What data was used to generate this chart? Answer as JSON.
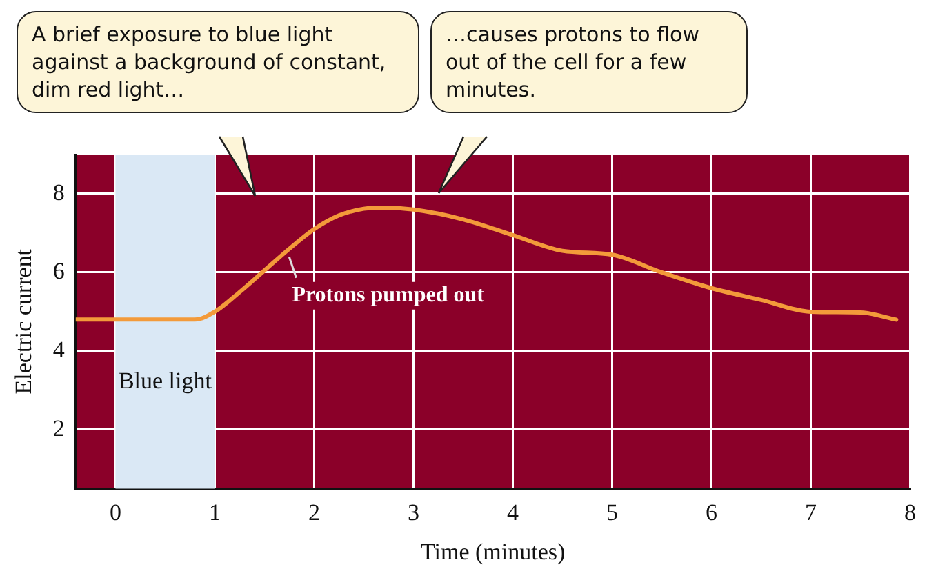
{
  "chart_data": {
    "type": "line",
    "xlabel": "Time (minutes)",
    "ylabel": "Electric current",
    "x": [
      -0.4,
      0,
      0.5,
      0.8,
      1.0,
      1.25,
      1.5,
      1.75,
      2.0,
      2.25,
      2.5,
      2.7,
      3.0,
      3.5,
      4.0,
      4.5,
      5.0,
      5.5,
      6.0,
      6.5,
      7.0,
      7.5,
      7.86
    ],
    "series": [
      {
        "color": "#f39a3a",
        "values": [
          4.8,
          4.8,
          4.8,
          4.8,
          5.0,
          5.5,
          6.05,
          6.6,
          7.1,
          7.45,
          7.62,
          7.65,
          7.6,
          7.35,
          6.95,
          6.55,
          6.45,
          6.0,
          5.6,
          5.3,
          5.0,
          4.98,
          4.8
        ]
      }
    ],
    "xlim": [
      -0.4,
      8
    ],
    "xticks": [
      0,
      1,
      2,
      3,
      4,
      5,
      6,
      7,
      8
    ],
    "ylim": [
      0.5,
      9
    ],
    "yticks": [
      2,
      4,
      6,
      8
    ],
    "grid": true,
    "marker": "none",
    "line_style": "solid",
    "bands": [
      {
        "axis": "x",
        "from": 0,
        "to": 1,
        "label": "Blue light",
        "color": "#dae8f5"
      }
    ],
    "annotations": [
      "A brief exposure to blue light against a background of constant, dim red light…",
      "…causes protons to flow out of the cell for a few minutes.",
      {
        "text": "Protons pumped out",
        "x": 1.75,
        "y": 6.6
      }
    ]
  }
}
